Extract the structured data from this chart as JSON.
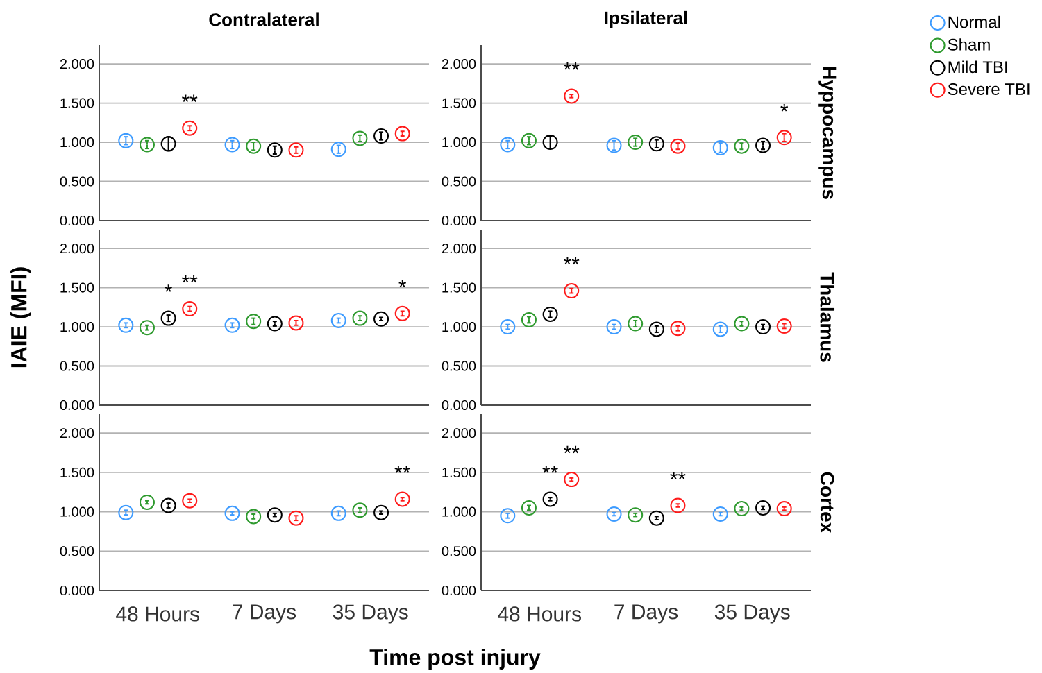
{
  "chart_data": [
    {
      "type": "scatter",
      "title": "Contralateral",
      "categories": [
        null,
        null,
        null
      ],
      "ylim": [
        0,
        2.24
      ],
      "yticks": [
        {
          "value": 0,
          "label": "0.000"
        },
        {
          "value": 0.5,
          "label": "0.500"
        },
        {
          "value": 1,
          "label": "1.000"
        },
        {
          "value": 1.5,
          "label": "1.500"
        },
        {
          "value": 2,
          "label": "2.000"
        }
      ],
      "grid": "y",
      "marker": "circle",
      "tick_labels": "y",
      "series": [
        {
          "color": "#3d9bff",
          "values": [
            1.02,
            0.97,
            0.91
          ],
          "errors": [
            0.05,
            0.05,
            0.05
          ]
        },
        {
          "color": "#2e9a2e",
          "values": [
            0.97,
            0.95,
            1.05
          ],
          "errors": [
            0.05,
            0.05,
            0.04
          ]
        },
        {
          "color": "#000000",
          "values": [
            0.98,
            0.9,
            1.08
          ],
          "errors": [
            0.09,
            0.05,
            0.05
          ]
        },
        {
          "color": "#ff1a1a",
          "values": [
            1.18,
            0.9,
            1.11
          ],
          "errors": [
            0.03,
            0.04,
            0.03
          ]
        }
      ],
      "annotations": [
        "**"
      ]
    },
    {
      "type": "scatter",
      "title": "Ipsilateral",
      "y2label": "Hyppocampus",
      "categories": [
        null,
        null,
        null
      ],
      "ylim": [
        0,
        2.24
      ],
      "yticks": [
        {
          "value": 0,
          "label": "0.000"
        },
        {
          "value": 0.5,
          "label": "0.500"
        },
        {
          "value": 1,
          "label": "1.000"
        },
        {
          "value": 1.5,
          "label": "1.500"
        },
        {
          "value": 2,
          "label": "2.000"
        }
      ],
      "grid": "y",
      "marker": "circle",
      "tick_labels": "y",
      "legend": "top right",
      "series": [
        {
          "name": "Normal",
          "color": "#3d9bff",
          "values": [
            0.97,
            0.96,
            0.93
          ],
          "errors": [
            0.05,
            0.06,
            0.06
          ]
        },
        {
          "name": "Sham",
          "color": "#2e9a2e",
          "values": [
            1.02,
            1.0,
            0.95
          ],
          "errors": [
            0.05,
            0.05,
            0.04
          ]
        },
        {
          "name": "Mild TBI",
          "color": "#000000",
          "values": [
            1.0,
            0.98,
            0.96
          ],
          "errors": [
            0.08,
            0.05,
            0.05
          ]
        },
        {
          "name": "Severe TBI",
          "color": "#ff1a1a",
          "values": [
            1.59,
            0.95,
            1.06
          ],
          "errors": [
            0.02,
            0.04,
            0.05
          ]
        }
      ],
      "annotations": [
        "**",
        "*"
      ]
    },
    {
      "type": "scatter",
      "ylabel": "IAIE (MFI)",
      "categories": [
        null,
        null,
        null
      ],
      "ylim": [
        0,
        2.24
      ],
      "yticks": [
        {
          "value": 0,
          "label": "0.000"
        },
        {
          "value": 0.5,
          "label": "0.500"
        },
        {
          "value": 1,
          "label": "1.000"
        },
        {
          "value": 1.5,
          "label": "1.500"
        },
        {
          "value": 2,
          "label": "2.000"
        }
      ],
      "grid": "y",
      "marker": "circle",
      "tick_labels": "y",
      "series": [
        {
          "color": "#3d9bff",
          "values": [
            1.02,
            1.02,
            1.08
          ],
          "errors": [
            0.03,
            0.03,
            0.03
          ]
        },
        {
          "color": "#2e9a2e",
          "values": [
            0.99,
            1.07,
            1.11
          ],
          "errors": [
            0.03,
            0.04,
            0.03
          ]
        },
        {
          "color": "#000000",
          "values": [
            1.11,
            1.04,
            1.1
          ],
          "errors": [
            0.04,
            0.03,
            0.02
          ]
        },
        {
          "color": "#ff1a1a",
          "values": [
            1.23,
            1.05,
            1.17
          ],
          "errors": [
            0.03,
            0.03,
            0.03
          ]
        }
      ],
      "annotations": [
        "*",
        "**",
        "*"
      ]
    },
    {
      "type": "scatter",
      "y2label": "Thalamus",
      "categories": [
        null,
        null,
        null
      ],
      "ylim": [
        0,
        2.24
      ],
      "yticks": [
        {
          "value": 0,
          "label": "0.000"
        },
        {
          "value": 0.5,
          "label": "0.500"
        },
        {
          "value": 1,
          "label": "1.000"
        },
        {
          "value": 1.5,
          "label": "1.500"
        },
        {
          "value": 2,
          "label": "2.000"
        }
      ],
      "grid": "y",
      "marker": "circle",
      "tick_labels": "y",
      "series": [
        {
          "color": "#3d9bff",
          "values": [
            1.0,
            1.0,
            0.97
          ],
          "errors": [
            0.03,
            0.03,
            0.04
          ]
        },
        {
          "color": "#2e9a2e",
          "values": [
            1.09,
            1.04,
            1.04
          ],
          "errors": [
            0.04,
            0.04,
            0.03
          ]
        },
        {
          "color": "#000000",
          "values": [
            1.16,
            0.97,
            1.0
          ],
          "errors": [
            0.04,
            0.04,
            0.03
          ]
        },
        {
          "color": "#ff1a1a",
          "values": [
            1.46,
            0.98,
            1.01
          ],
          "errors": [
            0.03,
            0.03,
            0.03
          ]
        }
      ],
      "annotations": [
        "**"
      ]
    },
    {
      "type": "scatter",
      "xlabel": "Time post injury",
      "categories": [
        "48 Hours",
        "7 Days",
        "35 Days"
      ],
      "ylim": [
        0,
        2.24
      ],
      "yticks": [
        {
          "value": 0,
          "label": "0.000"
        },
        {
          "value": 0.5,
          "label": "0.500"
        },
        {
          "value": 1,
          "label": "1.000"
        },
        {
          "value": 1.5,
          "label": "1.500"
        },
        {
          "value": 2,
          "label": "2.000"
        }
      ],
      "grid": "y",
      "marker": "circle",
      "series": [
        {
          "color": "#3d9bff",
          "values": [
            0.99,
            0.98,
            0.98
          ],
          "errors": [
            0.03,
            0.02,
            0.03
          ]
        },
        {
          "color": "#2e9a2e",
          "values": [
            1.12,
            0.94,
            1.02
          ],
          "errors": [
            0.02,
            0.03,
            0.03
          ]
        },
        {
          "color": "#000000",
          "values": [
            1.08,
            0.96,
            0.99
          ],
          "errors": [
            0.03,
            0.02,
            0.02
          ]
        },
        {
          "color": "#ff1a1a",
          "values": [
            1.14,
            0.92,
            1.16
          ],
          "errors": [
            0.02,
            0.03,
            0.02
          ]
        }
      ],
      "annotations": [
        "**"
      ]
    },
    {
      "type": "scatter",
      "y2label": "Cortex",
      "categories": [
        "48 Hours",
        "7 Days",
        "35 Days"
      ],
      "ylim": [
        0,
        2.24
      ],
      "yticks": [
        {
          "value": 0,
          "label": "0.000"
        },
        {
          "value": 0.5,
          "label": "0.500"
        },
        {
          "value": 1,
          "label": "1.000"
        },
        {
          "value": 1.5,
          "label": "1.500"
        },
        {
          "value": 2,
          "label": "2.000"
        }
      ],
      "grid": "y",
      "marker": "circle",
      "series": [
        {
          "color": "#3d9bff",
          "values": [
            0.95,
            0.97,
            0.97
          ],
          "errors": [
            0.03,
            0.02,
            0.02
          ]
        },
        {
          "color": "#2e9a2e",
          "values": [
            1.05,
            0.96,
            1.04
          ],
          "errors": [
            0.03,
            0.02,
            0.02
          ]
        },
        {
          "color": "#000000",
          "values": [
            1.16,
            0.92,
            1.05
          ],
          "errors": [
            0.02,
            0.02,
            0.02
          ]
        },
        {
          "color": "#ff1a1a",
          "values": [
            1.41,
            1.08,
            1.04
          ],
          "errors": [
            0.02,
            0.02,
            0.02
          ]
        }
      ],
      "annotations": [
        "**",
        "**",
        "**"
      ]
    }
  ]
}
